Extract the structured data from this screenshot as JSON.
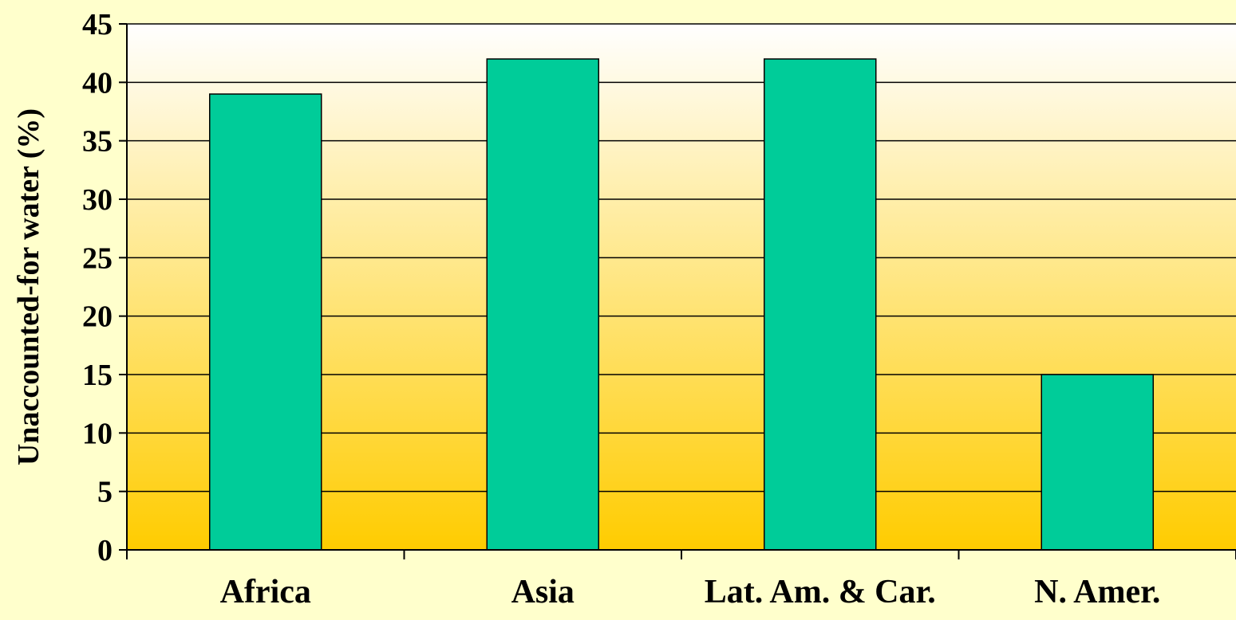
{
  "chart_data": {
    "type": "bar",
    "title": "",
    "xlabel": "",
    "ylabel": "Unaccounted-for water (%)",
    "categories": [
      "Africa",
      "Asia",
      "Lat. Am. & Car.",
      "N. Amer."
    ],
    "values": [
      39,
      42,
      42,
      15
    ],
    "ylim": [
      0,
      45
    ],
    "yticks": [
      0,
      5,
      10,
      15,
      20,
      25,
      30,
      35,
      40,
      45
    ],
    "grid": true,
    "legend": "none",
    "colors": {
      "bar": "#00CC99",
      "bar_stroke": "#000000",
      "plot_top": "#FFFFFF",
      "plot_bottom": "#FFCC00",
      "page_background": "#FFFFCC"
    }
  }
}
